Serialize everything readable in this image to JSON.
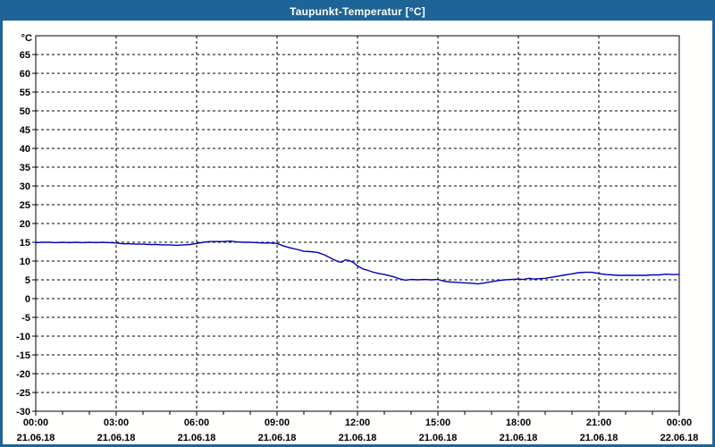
{
  "window": {
    "title": "Taupunkt-Temperatur [°C]"
  },
  "colors": {
    "titlebar_bg": "#1e6496",
    "window_border": "#1e6496",
    "plot_bg": "#ffffff",
    "grid": "#000000",
    "axis": "#000000",
    "label_text": "#000000",
    "line": "#0000b0"
  },
  "chart_data": {
    "type": "line",
    "title": "Taupunkt-Temperatur [°C]",
    "ylabel": "°C",
    "xlabel": "",
    "grid": "dashed",
    "legend": "none",
    "ylim": [
      -30,
      70
    ],
    "ytick_step": 5,
    "ytick_values": [
      65,
      60,
      55,
      50,
      45,
      40,
      35,
      30,
      25,
      20,
      15,
      10,
      5,
      0,
      -5,
      -10,
      -15,
      -20,
      -25,
      -30
    ],
    "xlim_hours": [
      0,
      24
    ],
    "xtick_major_step_hours": 3,
    "xtick_minor_step_hours": 1,
    "xticks": [
      {
        "hour": 0,
        "time": "00:00",
        "date": "21.06.18"
      },
      {
        "hour": 3,
        "time": "03:00",
        "date": "21.06.18"
      },
      {
        "hour": 6,
        "time": "06:00",
        "date": "21.06.18"
      },
      {
        "hour": 9,
        "time": "09:00",
        "date": "21.06.18"
      },
      {
        "hour": 12,
        "time": "12:00",
        "date": "21.06.18"
      },
      {
        "hour": 15,
        "time": "15:00",
        "date": "21.06.18"
      },
      {
        "hour": 18,
        "time": "18:00",
        "date": "21.06.18"
      },
      {
        "hour": 21,
        "time": "21:00",
        "date": "21.06.18"
      },
      {
        "hour": 24,
        "time": "00:00",
        "date": "22.06.18"
      }
    ],
    "series": [
      {
        "name": "Taupunkt-Temperatur",
        "color": "#0000b0",
        "points": [
          [
            0.0,
            14.9
          ],
          [
            0.25,
            15.0
          ],
          [
            0.5,
            15.0
          ],
          [
            0.75,
            14.9
          ],
          [
            1.0,
            15.0
          ],
          [
            1.25,
            14.9
          ],
          [
            1.5,
            15.0
          ],
          [
            1.75,
            14.9
          ],
          [
            2.0,
            15.0
          ],
          [
            2.25,
            14.9
          ],
          [
            2.5,
            15.0
          ],
          [
            2.75,
            14.9
          ],
          [
            3.0,
            14.8
          ],
          [
            3.25,
            14.6
          ],
          [
            3.5,
            14.6
          ],
          [
            3.75,
            14.5
          ],
          [
            4.0,
            14.5
          ],
          [
            4.25,
            14.4
          ],
          [
            4.5,
            14.4
          ],
          [
            4.75,
            14.3
          ],
          [
            5.0,
            14.3
          ],
          [
            5.25,
            14.2
          ],
          [
            5.5,
            14.3
          ],
          [
            5.75,
            14.4
          ],
          [
            6.0,
            14.7
          ],
          [
            6.25,
            15.0
          ],
          [
            6.5,
            15.2
          ],
          [
            6.75,
            15.2
          ],
          [
            7.0,
            15.2
          ],
          [
            7.25,
            15.3
          ],
          [
            7.5,
            15.1
          ],
          [
            7.75,
            15.0
          ],
          [
            8.0,
            15.0
          ],
          [
            8.25,
            14.9
          ],
          [
            8.5,
            14.8
          ],
          [
            8.75,
            14.8
          ],
          [
            9.0,
            14.7
          ],
          [
            9.25,
            14.0
          ],
          [
            9.5,
            13.5
          ],
          [
            9.75,
            13.1
          ],
          [
            10.0,
            12.6
          ],
          [
            10.25,
            12.5
          ],
          [
            10.5,
            12.3
          ],
          [
            10.75,
            11.7
          ],
          [
            11.0,
            10.8
          ],
          [
            11.25,
            9.9
          ],
          [
            11.4,
            9.7
          ],
          [
            11.55,
            10.3
          ],
          [
            11.7,
            10.1
          ],
          [
            11.85,
            9.6
          ],
          [
            12.0,
            8.7
          ],
          [
            12.2,
            7.9
          ],
          [
            12.4,
            7.5
          ],
          [
            12.6,
            7.0
          ],
          [
            12.8,
            6.7
          ],
          [
            13.0,
            6.4
          ],
          [
            13.2,
            6.1
          ],
          [
            13.4,
            5.7
          ],
          [
            13.6,
            5.2
          ],
          [
            13.8,
            4.9
          ],
          [
            14.0,
            5.1
          ],
          [
            14.25,
            5.0
          ],
          [
            14.5,
            5.1
          ],
          [
            14.75,
            5.0
          ],
          [
            15.0,
            5.1
          ],
          [
            15.25,
            4.6
          ],
          [
            15.5,
            4.4
          ],
          [
            15.75,
            4.3
          ],
          [
            16.0,
            4.2
          ],
          [
            16.25,
            4.1
          ],
          [
            16.5,
            3.9
          ],
          [
            16.75,
            4.2
          ],
          [
            17.0,
            4.5
          ],
          [
            17.25,
            4.8
          ],
          [
            17.5,
            5.0
          ],
          [
            17.75,
            5.1
          ],
          [
            18.0,
            5.2
          ],
          [
            18.2,
            5.1
          ],
          [
            18.4,
            5.4
          ],
          [
            18.6,
            5.2
          ],
          [
            18.8,
            5.3
          ],
          [
            19.0,
            5.4
          ],
          [
            19.25,
            5.7
          ],
          [
            19.5,
            6.0
          ],
          [
            19.75,
            6.3
          ],
          [
            20.0,
            6.6
          ],
          [
            20.25,
            6.9
          ],
          [
            20.5,
            7.0
          ],
          [
            20.75,
            7.0
          ],
          [
            21.0,
            6.7
          ],
          [
            21.25,
            6.4
          ],
          [
            21.5,
            6.3
          ],
          [
            21.75,
            6.2
          ],
          [
            22.0,
            6.2
          ],
          [
            22.25,
            6.2
          ],
          [
            22.5,
            6.2
          ],
          [
            22.75,
            6.2
          ],
          [
            23.0,
            6.3
          ],
          [
            23.25,
            6.3
          ],
          [
            23.5,
            6.5
          ],
          [
            23.75,
            6.4
          ],
          [
            24.0,
            6.4
          ]
        ]
      }
    ]
  }
}
